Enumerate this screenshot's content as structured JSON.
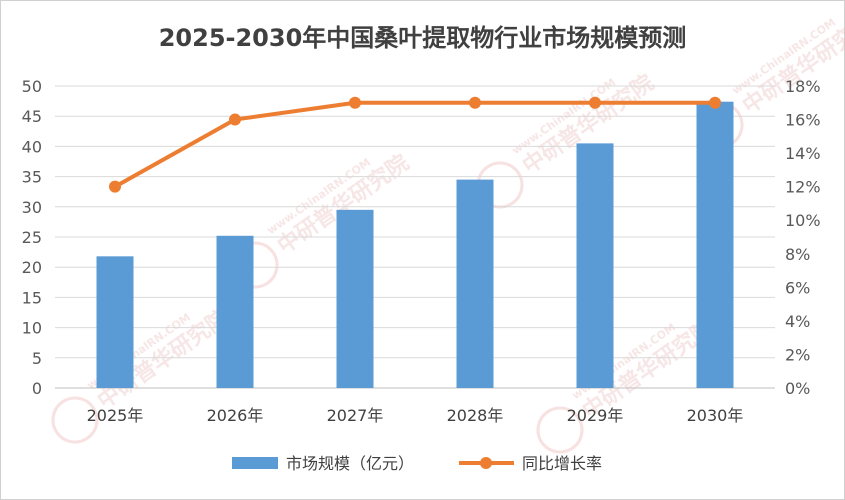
{
  "chart_data": {
    "type": "bar",
    "title": "2025-2030年中国桑叶提取物行业市场规模预测",
    "categories": [
      "2025年",
      "2026年",
      "2027年",
      "2028年",
      "2029年",
      "2030年"
    ],
    "series": [
      {
        "name": "市场规模（亿元）",
        "type": "bar",
        "axis": "left",
        "values": [
          21.8,
          25.2,
          29.5,
          34.5,
          40.5,
          47.4
        ],
        "color": "#5b9bd5"
      },
      {
        "name": "同比增长率",
        "type": "line",
        "axis": "right",
        "values": [
          12,
          16,
          17,
          17,
          17,
          17
        ],
        "color": "#ed7d31"
      }
    ],
    "y_left": {
      "min": 0,
      "max": 50,
      "ticks": [
        "0",
        "5",
        "10",
        "15",
        "20",
        "25",
        "30",
        "35",
        "40",
        "45",
        "50"
      ]
    },
    "y_right": {
      "min": 0,
      "max": 18,
      "ticks": [
        "0%",
        "2%",
        "4%",
        "6%",
        "8%",
        "10%",
        "12%",
        "14%",
        "16%",
        "18%"
      ]
    },
    "grid": true,
    "legend_position": "bottom"
  },
  "watermark": {
    "brand": "CIRN",
    "text": "中研普华研究院",
    "url": "www.ChinaIRN.COM"
  }
}
